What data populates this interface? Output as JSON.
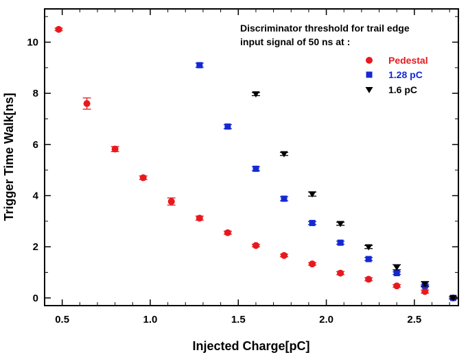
{
  "chart_data": {
    "type": "scatter",
    "xlabel": "Injected Charge[pC]",
    "ylabel": "Trigger Time Walk[ns]",
    "xlim": [
      0.4,
      2.75
    ],
    "ylim": [
      -0.3,
      11.3
    ],
    "x_ticks": [
      0.5,
      1.0,
      1.5,
      2.0,
      2.5
    ],
    "x_tick_labels": [
      "0.5",
      "1.0",
      "1.5",
      "2.0",
      "2.5"
    ],
    "y_ticks": [
      0,
      2,
      4,
      6,
      8,
      10
    ],
    "y_tick_labels": [
      "0",
      "2",
      "4",
      "6",
      "8",
      "10"
    ],
    "legend_title_lines": [
      "Discriminator threshold for trail edge",
      "input signal of 50 ns at :"
    ],
    "legend_position": "top-right",
    "series": [
      {
        "name": "Pedestal",
        "color": "#e8191e",
        "marker": "circle",
        "x": [
          0.48,
          0.64,
          0.8,
          0.96,
          1.12,
          1.28,
          1.44,
          1.6,
          1.76,
          1.92,
          2.08,
          2.24,
          2.4,
          2.56,
          2.72
        ],
        "y": [
          10.5,
          7.6,
          5.82,
          4.7,
          3.77,
          3.12,
          2.55,
          2.05,
          1.66,
          1.33,
          0.97,
          0.73,
          0.47,
          0.25,
          0.0
        ],
        "err": [
          0.05,
          0.22,
          0.1,
          0.07,
          0.14,
          0.08,
          0.06,
          0.05,
          0.05,
          0.05,
          0.06,
          0.06,
          0.05,
          0.06,
          0.04
        ]
      },
      {
        "name": "1.28 pC",
        "color": "#1428d2",
        "marker": "square",
        "x": [
          1.28,
          1.44,
          1.6,
          1.76,
          1.92,
          2.08,
          2.24,
          2.4,
          2.56,
          2.72
        ],
        "y": [
          9.1,
          6.7,
          5.05,
          3.88,
          2.93,
          2.16,
          1.52,
          0.97,
          0.48,
          0.0
        ],
        "err": [
          0.08,
          0.08,
          0.08,
          0.08,
          0.06,
          0.06,
          0.06,
          0.05,
          0.05,
          0.04
        ]
      },
      {
        "name": "1.6 pC",
        "color": "#000000",
        "marker": "triangle-down",
        "x": [
          1.6,
          1.76,
          1.92,
          2.08,
          2.24,
          2.4,
          2.56,
          2.72
        ],
        "y": [
          7.97,
          5.63,
          4.06,
          2.9,
          1.99,
          1.2,
          0.55,
          0.0
        ],
        "err": [
          0.06,
          0.06,
          0.08,
          0.06,
          0.06,
          0.1,
          0.08,
          0.04
        ]
      }
    ]
  }
}
